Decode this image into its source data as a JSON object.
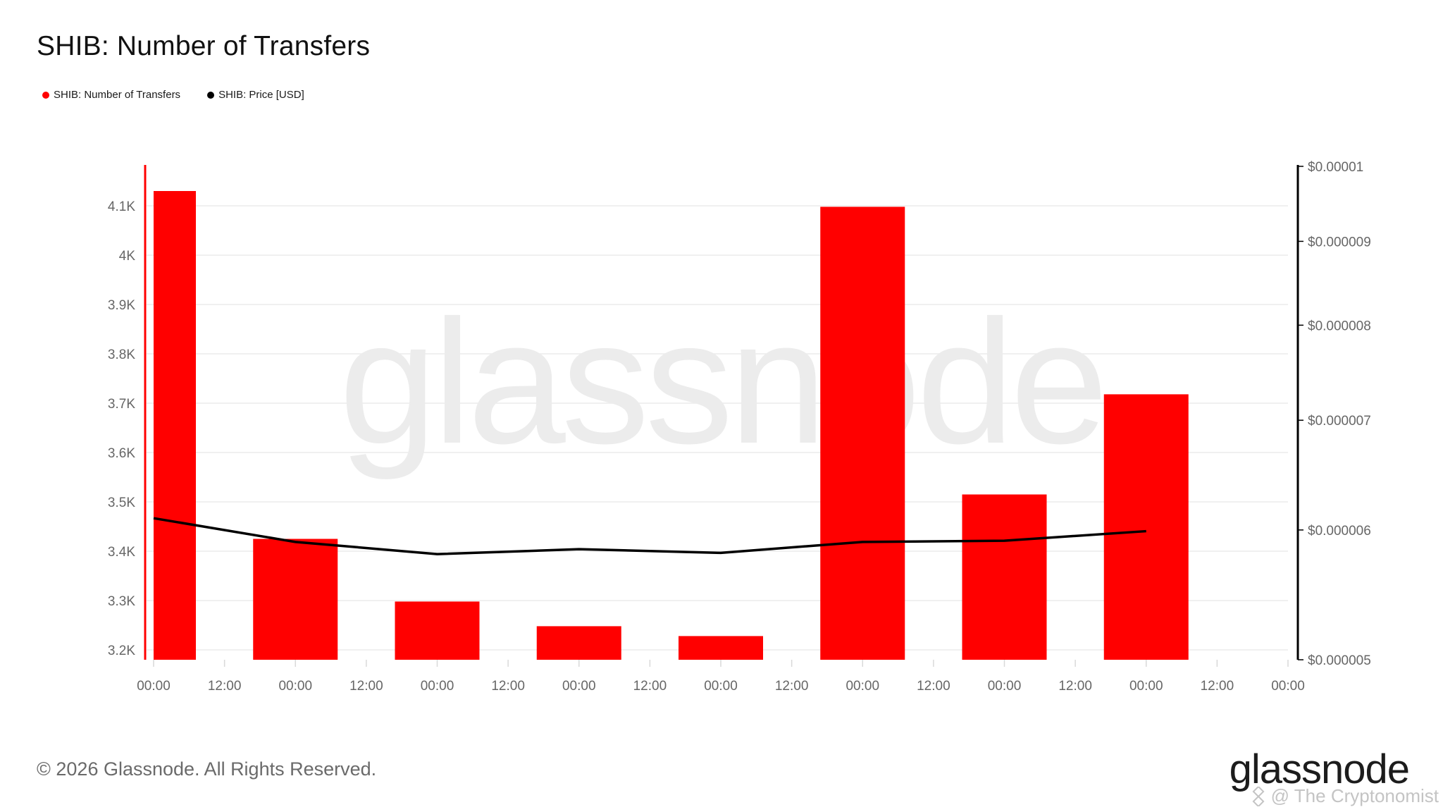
{
  "title": "SHIB: Number of Transfers",
  "legend": [
    {
      "label": "SHIB: Number of Transfers",
      "color": "#ff0000"
    },
    {
      "label": "SHIB: Price [USD]",
      "color": "#000000"
    }
  ],
  "watermark": "glassnode",
  "footer": {
    "copyright": "© 2026 Glassnode. All Rights Reserved.",
    "brand": "glassnode",
    "credit_icon": "binance-logo-icon",
    "credit": "@ The Cryptonomist"
  },
  "chart_data": {
    "type": "bar",
    "title": "SHIB: Number of Transfers",
    "x_tick_labels": [
      "00:00",
      "12:00",
      "00:00",
      "12:00",
      "00:00",
      "12:00",
      "00:00",
      "12:00",
      "00:00",
      "12:00",
      "00:00",
      "12:00",
      "00:00",
      "12:00",
      "00:00",
      "12:00",
      "00:00"
    ],
    "left_axis": {
      "ticks": [
        "3.2K",
        "3.3K",
        "3.4K",
        "3.5K",
        "3.6K",
        "3.7K",
        "3.8K",
        "3.9K",
        "4K",
        "4.1K"
      ],
      "tick_values": [
        3200,
        3300,
        3400,
        3500,
        3600,
        3700,
        3800,
        3900,
        4000,
        4100
      ],
      "ylim": [
        3180,
        4180
      ],
      "color": "#ff0000"
    },
    "right_axis": {
      "ticks": [
        "$0.000005",
        "$0.000006",
        "$0.000007",
        "$0.000008",
        "$0.000009",
        "$0.00001"
      ],
      "tick_values": [
        5e-06,
        6e-06,
        7e-06,
        8e-06,
        9e-06,
        1e-05
      ],
      "scale": "log",
      "ylim": [
        5e-06,
        1e-05
      ],
      "color": "#000000"
    },
    "grid": true,
    "legend_position": "top-left",
    "series": [
      {
        "name": "SHIB: Number of Transfers",
        "type": "bar",
        "axis": "left",
        "color": "#ff0000",
        "values": [
          4130,
          3425,
          3298,
          3248,
          3228,
          4098,
          3515,
          3718
        ]
      },
      {
        "name": "SHIB: Price [USD]",
        "type": "line",
        "axis": "right",
        "color": "#000000",
        "values": [
          6.1e-06,
          5.9e-06,
          5.8e-06,
          5.84e-06,
          5.81e-06,
          5.9e-06,
          5.91e-06,
          5.99e-06
        ]
      }
    ]
  }
}
